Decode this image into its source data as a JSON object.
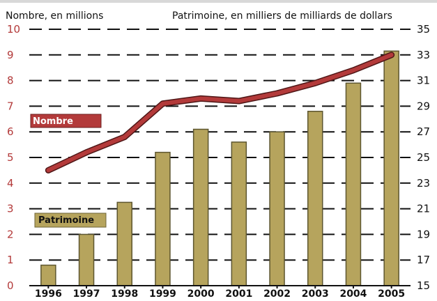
{
  "chart_data": {
    "type": "bar",
    "categories": [
      "1996",
      "1997",
      "1998",
      "1999",
      "2000",
      "2001",
      "2002",
      "2003",
      "2004",
      "2005"
    ],
    "series": [
      {
        "name": "Patrimoine",
        "type": "bar",
        "axis": "right",
        "values": [
          16.6,
          19.0,
          21.5,
          25.4,
          27.2,
          26.2,
          27.0,
          28.6,
          30.8,
          33.3
        ]
      },
      {
        "name": "Nombre",
        "type": "line",
        "axis": "left",
        "values": [
          4.5,
          5.2,
          5.8,
          7.1,
          7.3,
          7.2,
          7.5,
          7.9,
          8.4,
          9.0
        ]
      }
    ],
    "left_axis_label": "Nombre, en millions",
    "right_axis_label": "Patrimoine, en milliers de milliards de dollars",
    "left_ylim": [
      0,
      10
    ],
    "right_ylim": [
      15,
      35
    ],
    "left_ticks": [
      "0",
      "1",
      "2",
      "3",
      "4",
      "5",
      "6",
      "7",
      "8",
      "9",
      "10"
    ],
    "right_ticks": [
      "15",
      "17",
      "19",
      "21",
      "23",
      "25",
      "27",
      "29",
      "31",
      "33",
      "35"
    ],
    "grid": true,
    "colors": {
      "bar": "#b6a45d",
      "bar_outline": "#5d5630",
      "line": "#b33a3a",
      "line_outline": "#4e1616",
      "left_tick": "#b33a3a",
      "right_tick": "#111111",
      "grid": "#111111",
      "label_bg_nombre": "#b33a3a",
      "label_bg_patrimoine": "#b6a45d"
    }
  }
}
